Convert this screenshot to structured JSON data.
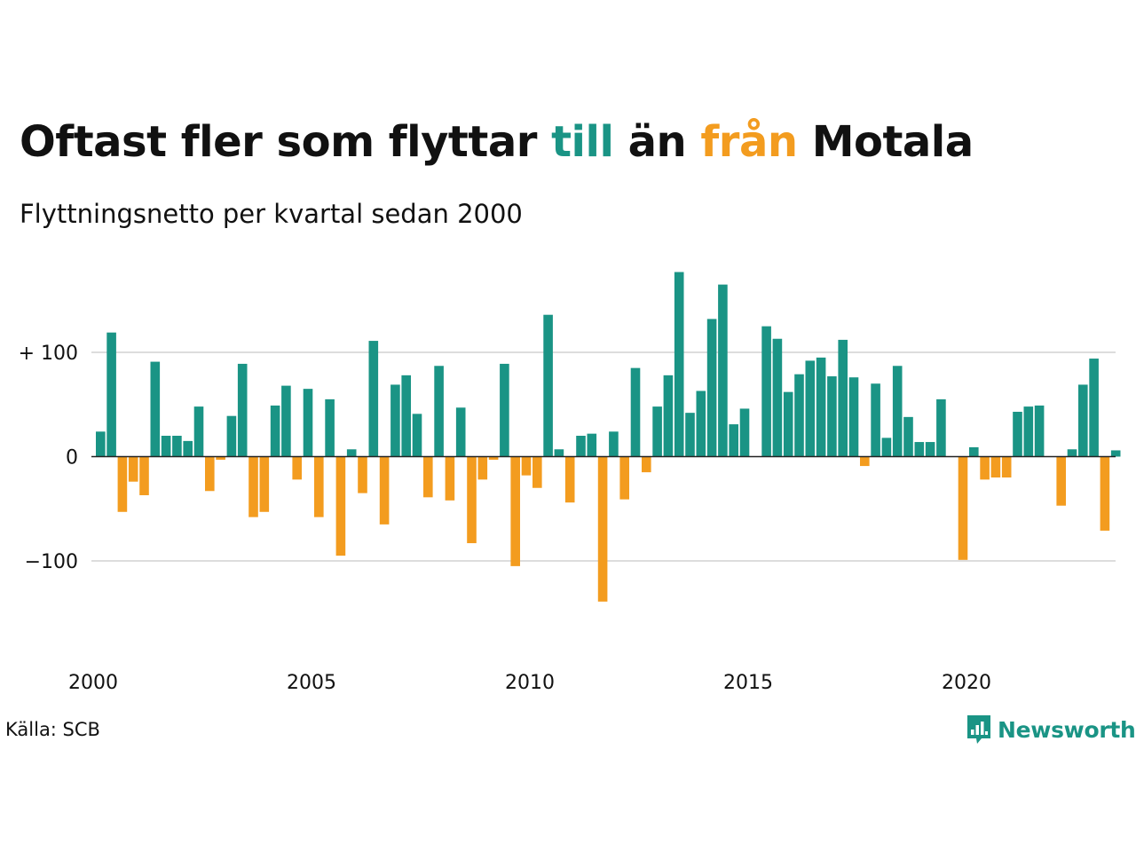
{
  "header": {
    "title_part1": "Oftast fler som flyttar ",
    "title_highlight_in": "till",
    "title_part2": " än ",
    "title_highlight_out": "från",
    "title_part3": " Motala",
    "subtitle": "Flyttningsnetto per kvartal sedan 2000"
  },
  "footer": {
    "source": "Källa: SCB",
    "brand": "Newsworthy"
  },
  "colors": {
    "positive": "#1a9485",
    "negative": "#f39c1f",
    "grid": "#dddddd",
    "text": "#111111",
    "brand": "#1a9485"
  },
  "icons": {
    "brand_logo": "bar-chart-speech-bubble-icon"
  },
  "chart_data": {
    "type": "bar",
    "title": "Oftast fler som flyttar till än från Motala",
    "subtitle": "Flyttningsnetto per kvartal sedan 2000",
    "xlabel": "",
    "ylabel": "",
    "start": "2000 Q1",
    "x_tick_labels": [
      "2000",
      "2005",
      "2010",
      "2015",
      "2020"
    ],
    "y_ticks": [
      {
        "value": 100,
        "label": "+ 100"
      },
      {
        "value": 0,
        "label": "0"
      },
      {
        "value": -100,
        "label": "−100"
      }
    ],
    "ylim": [
      -150,
      180
    ],
    "grid": true,
    "series": [
      {
        "values": [
          24,
          119,
          -53,
          -24,
          -37,
          91,
          20,
          20,
          15,
          48,
          -33,
          -3,
          39,
          89,
          -58,
          -53,
          49,
          68,
          -22,
          65,
          -58,
          55,
          -95,
          7,
          -35,
          111,
          -65,
          69,
          78,
          41,
          -39,
          87,
          -42,
          47,
          -83,
          -22,
          -3,
          89,
          -105,
          -18,
          -30,
          136,
          7,
          -44,
          20,
          22,
          -139,
          24,
          -41,
          85,
          -15,
          48,
          78,
          177,
          42,
          63,
          132,
          165,
          31,
          46,
          0,
          125,
          113,
          62,
          79,
          92,
          95,
          77,
          112,
          76,
          -9,
          70,
          18,
          87,
          38,
          14,
          14,
          55,
          0,
          -99,
          9,
          -22,
          -20,
          -20,
          43,
          48,
          49,
          0,
          -47,
          7,
          69,
          94,
          -71,
          6
        ]
      }
    ]
  }
}
